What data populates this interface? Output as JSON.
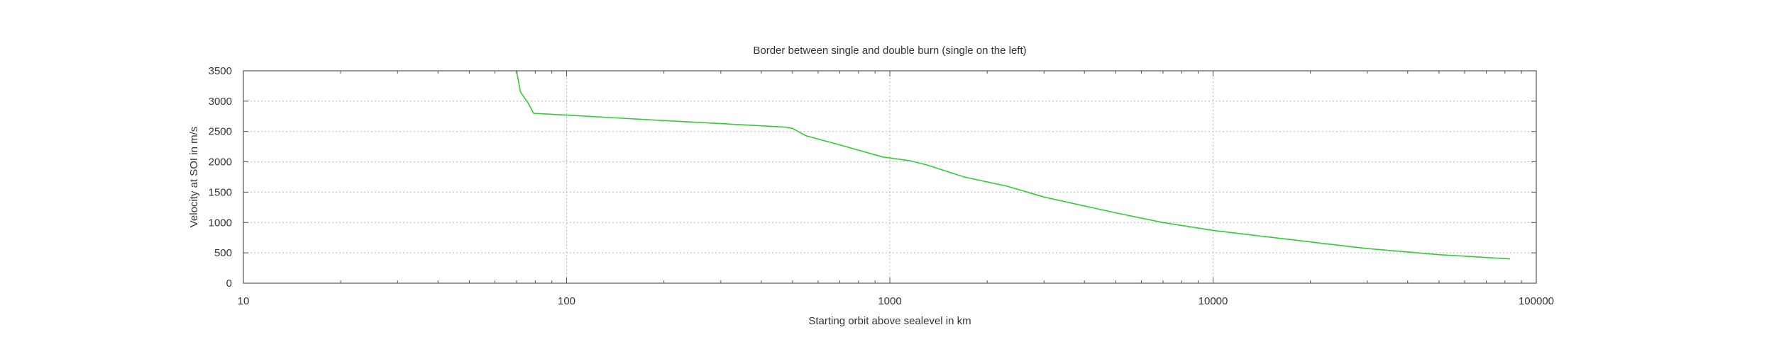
{
  "chart_data": {
    "type": "line",
    "title": "Border between single and double burn (single on the left)",
    "xlabel": "Starting orbit above sealevel in km",
    "ylabel": "Velocity at SOI in m/s",
    "xscale": "log",
    "xlim": [
      10,
      100000
    ],
    "ylim": [
      0,
      3500
    ],
    "xticks": [
      10,
      100,
      1000,
      10000,
      100000
    ],
    "xtick_labels": [
      "10",
      "100",
      "1000",
      "10000",
      "100000"
    ],
    "yticks": [
      0,
      500,
      1000,
      1500,
      2000,
      2500,
      3000,
      3500
    ],
    "ytick_labels": [
      "0",
      "500",
      "1000",
      "1500",
      "2000",
      "2500",
      "3000",
      "3500"
    ],
    "grid": true,
    "series": [
      {
        "color": "#33cc33",
        "points": [
          [
            70,
            3500
          ],
          [
            72,
            3150
          ],
          [
            76,
            2970
          ],
          [
            79,
            2800
          ],
          [
            100,
            2770
          ],
          [
            200,
            2680
          ],
          [
            300,
            2630
          ],
          [
            480,
            2570
          ],
          [
            500,
            2550
          ],
          [
            550,
            2430
          ],
          [
            700,
            2280
          ],
          [
            950,
            2080
          ],
          [
            1150,
            2020
          ],
          [
            1300,
            1950
          ],
          [
            1700,
            1750
          ],
          [
            2300,
            1600
          ],
          [
            3000,
            1420
          ],
          [
            5000,
            1160
          ],
          [
            7000,
            1000
          ],
          [
            10000,
            870
          ],
          [
            15000,
            760
          ],
          [
            20000,
            680
          ],
          [
            30000,
            570
          ],
          [
            50000,
            470
          ],
          [
            83000,
            400
          ]
        ]
      }
    ]
  }
}
